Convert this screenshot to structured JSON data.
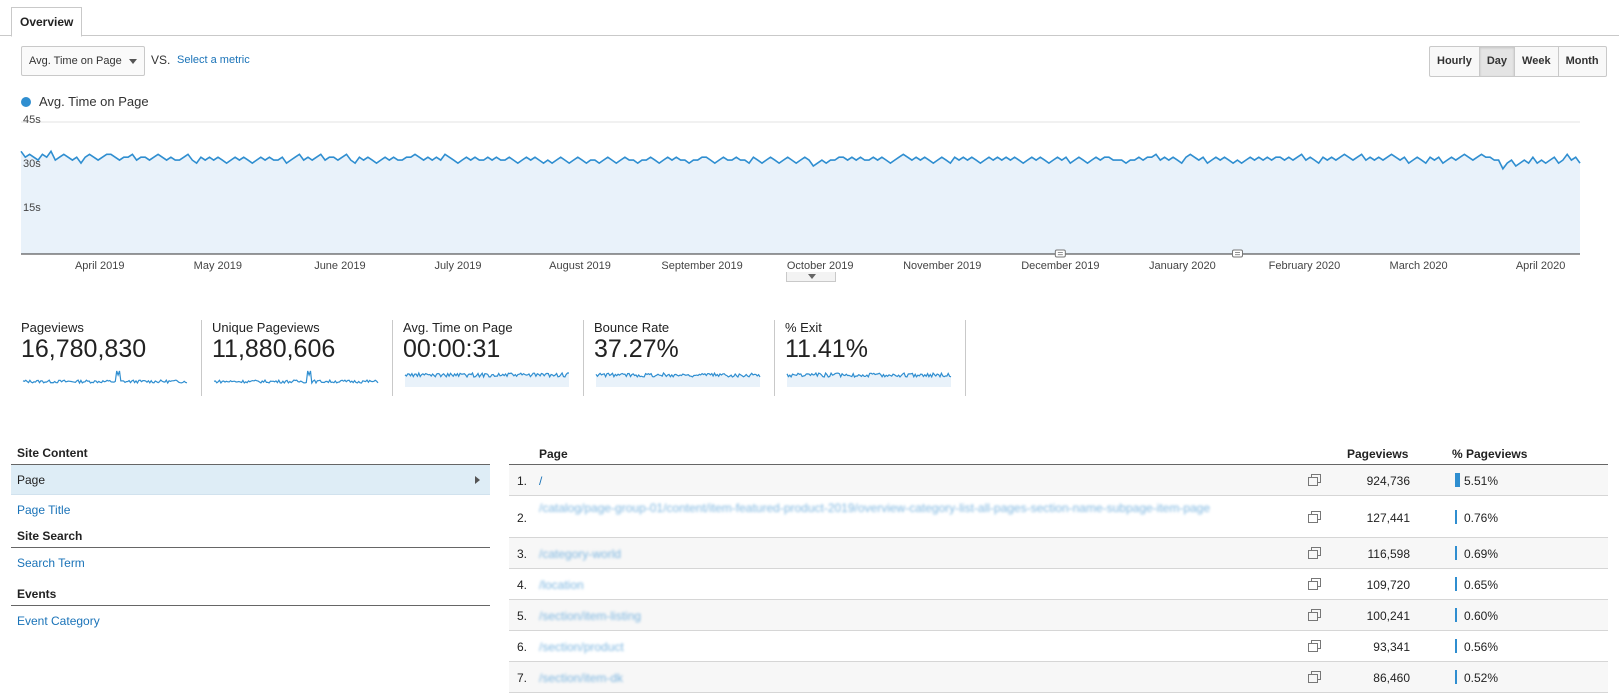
{
  "tabs": [
    {
      "label": "Overview"
    }
  ],
  "controls": {
    "metric_select": "Avg. Time on Page",
    "vs_label": "VS.",
    "select_metric_link": "Select a metric",
    "granularity": [
      "Hourly",
      "Day",
      "Week",
      "Month"
    ],
    "granularity_selected": "Day"
  },
  "legend": {
    "label": "Avg. Time on Page",
    "color": "#2f8ed0"
  },
  "chart_data": {
    "type": "area",
    "title": "",
    "series": [
      {
        "name": "Avg. Time on Page",
        "color": "#2f8ed0"
      }
    ],
    "ylabel": "",
    "ylim": [
      0,
      45
    ],
    "y_ticks": [
      "45s",
      "30s",
      "15s"
    ],
    "x_tick_labels": [
      "April 2019",
      "May 2019",
      "June 2019",
      "July 2019",
      "August 2019",
      "September 2019",
      "October 2019",
      "November 2019",
      "December 2019",
      "January 2020",
      "February 2020",
      "March 2020",
      "April 2020"
    ],
    "x_range": [
      "2019-03-12",
      "2020-04-11"
    ],
    "annotations": [
      "2019-12-01",
      "2020-01-15"
    ],
    "approx_daily_values_seconds": [
      35,
      33,
      34,
      33,
      32,
      34,
      33,
      35,
      32,
      33,
      34,
      33,
      32,
      33,
      31,
      33,
      34,
      33,
      32,
      33,
      34,
      34,
      33,
      32,
      33,
      33,
      34,
      32,
      33,
      33,
      32,
      33,
      34,
      33,
      32,
      33,
      32,
      32,
      33,
      34,
      32,
      31,
      33,
      32,
      33,
      32,
      33,
      32,
      31,
      32,
      33,
      32,
      33,
      32,
      31,
      32,
      33,
      32,
      33,
      32,
      32,
      33,
      31,
      32,
      33,
      34,
      32,
      33,
      32,
      33,
      34,
      32,
      33,
      33,
      32,
      33,
      34,
      32,
      31,
      33,
      32,
      33,
      32,
      31,
      32,
      33,
      32,
      33,
      32,
      32,
      33,
      33,
      34,
      33,
      32,
      33,
      32,
      33,
      32,
      34,
      33,
      32,
      31,
      32,
      33,
      32,
      33,
      32,
      32,
      33,
      32,
      33,
      32,
      32,
      33,
      32,
      31,
      32,
      33,
      32,
      33,
      32,
      31,
      32,
      31,
      32,
      33,
      32,
      31,
      32,
      33,
      32,
      31,
      32,
      32,
      31,
      32,
      33,
      32,
      31,
      32,
      33,
      32,
      32,
      31,
      32,
      32,
      33,
      32,
      31,
      32,
      33,
      32,
      33,
      32,
      32,
      31,
      32,
      32,
      33,
      33,
      32,
      31,
      32,
      33,
      32,
      32,
      33,
      32,
      32,
      31,
      33,
      32,
      31,
      32,
      33,
      32,
      31,
      32,
      33,
      32,
      31,
      32,
      33,
      32,
      30,
      31,
      32,
      31,
      32,
      32,
      33,
      33,
      32,
      33,
      32,
      33,
      32,
      32,
      33,
      32,
      33,
      32,
      31,
      32,
      33,
      34,
      33,
      32,
      33,
      32,
      33,
      32,
      31,
      32,
      33,
      32,
      31,
      33,
      32,
      33,
      32,
      33,
      32,
      31,
      32,
      33,
      32,
      33,
      32,
      33,
      32,
      33,
      32,
      31,
      32,
      33,
      32,
      33,
      32,
      31,
      32,
      33,
      32,
      33,
      31,
      32,
      33,
      32,
      31,
      32,
      33,
      32,
      33,
      33,
      32,
      32,
      32,
      31,
      32,
      32,
      33,
      32,
      33,
      33,
      34,
      32,
      33,
      32,
      33,
      32,
      31,
      33,
      34,
      33,
      32,
      33,
      31,
      32,
      33,
      32,
      33,
      32,
      31,
      32,
      31,
      32,
      33,
      32,
      33,
      32,
      33,
      32,
      33,
      33,
      32,
      33,
      32,
      33,
      34,
      32,
      33,
      32,
      31,
      33,
      32,
      33,
      32,
      33,
      34,
      33,
      32,
      33,
      34,
      32,
      33,
      32,
      33,
      32,
      33,
      34,
      33,
      32,
      33,
      31,
      32,
      33,
      32,
      31,
      33,
      32,
      33,
      31,
      32,
      33,
      32,
      33,
      34,
      33,
      32,
      33,
      34,
      33,
      33,
      32,
      32,
      29,
      31,
      32,
      30,
      31,
      32,
      31,
      33,
      31,
      32,
      31,
      32,
      33,
      31,
      32,
      34,
      32,
      33,
      31
    ]
  },
  "scorecards": [
    {
      "label": "Pageviews",
      "value": "16,780,830",
      "spark": "volume"
    },
    {
      "label": "Unique Pageviews",
      "value": "11,880,606",
      "spark": "volume"
    },
    {
      "label": "Avg. Time on Page",
      "value": "00:00:31",
      "spark": "filled"
    },
    {
      "label": "Bounce Rate",
      "value": "37.27%",
      "spark": "filled"
    },
    {
      "label": "% Exit",
      "value": "11.41%",
      "spark": "filled"
    }
  ],
  "nav": {
    "sections": [
      {
        "heading": "Site Content",
        "items": [
          {
            "label": "Page",
            "selected": true
          },
          {
            "label": "Page Title",
            "selected": false
          }
        ]
      },
      {
        "heading": "Site Search",
        "items": [
          {
            "label": "Search Term",
            "selected": false
          }
        ]
      },
      {
        "heading": "Events",
        "items": [
          {
            "label": "Event Category",
            "selected": false
          }
        ]
      }
    ]
  },
  "table": {
    "headers": {
      "page": "Page",
      "pageviews": "Pageviews",
      "pct": "% Pageviews"
    },
    "rows": [
      {
        "rank": "1.",
        "page": "/",
        "blurred": false,
        "pageviews": "924,736",
        "pct": "5.51%",
        "pct_value": 5.51
      },
      {
        "rank": "2.",
        "page": "/catalog/page-group-01/content/item-featured-product-2019/overview-category-list-all-pages-section-name-subpage-item-page",
        "blurred": true,
        "pageviews": "127,441",
        "pct": "0.76%",
        "pct_value": 0.76
      },
      {
        "rank": "3.",
        "page": "/category-world",
        "blurred": true,
        "pageviews": "116,598",
        "pct": "0.69%",
        "pct_value": 0.69
      },
      {
        "rank": "4.",
        "page": "/location",
        "blurred": true,
        "pageviews": "109,720",
        "pct": "0.65%",
        "pct_value": 0.65
      },
      {
        "rank": "5.",
        "page": "/section/item-listing",
        "blurred": true,
        "pageviews": "100,241",
        "pct": "0.60%",
        "pct_value": 0.6
      },
      {
        "rank": "6.",
        "page": "/section/product",
        "blurred": true,
        "pageviews": "93,341",
        "pct": "0.56%",
        "pct_value": 0.56
      },
      {
        "rank": "7.",
        "page": "/section/item-dk",
        "blurred": true,
        "pageviews": "86,460",
        "pct": "0.52%",
        "pct_value": 0.52
      }
    ]
  }
}
